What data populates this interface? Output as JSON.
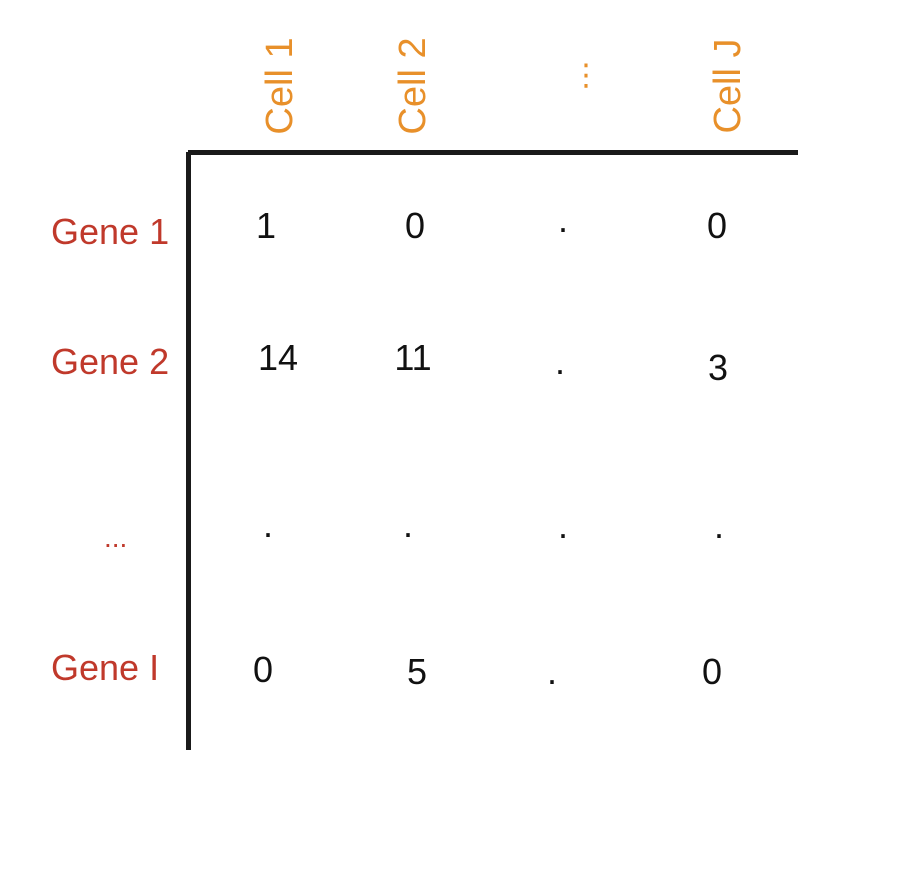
{
  "columns": [
    {
      "label": "Cell 1"
    },
    {
      "label": "Cell 2"
    },
    {
      "label": "⋮"
    },
    {
      "label": "Cell J"
    }
  ],
  "rows": [
    {
      "label": "Gene 1",
      "values": [
        "1",
        "0",
        ".",
        "0"
      ]
    },
    {
      "label": "Gene 2",
      "values": [
        "14",
        "11",
        ".",
        "3"
      ]
    },
    {
      "label": "...",
      "values": [
        ".",
        ".",
        ".",
        "."
      ]
    },
    {
      "label": "Gene I",
      "values": [
        "0",
        "5",
        ".",
        "0"
      ]
    }
  ],
  "colors": {
    "column_header": "#e8902a",
    "row_header": "#c0392b",
    "cell_text": "#111111",
    "axis": "#1a1a1a"
  }
}
